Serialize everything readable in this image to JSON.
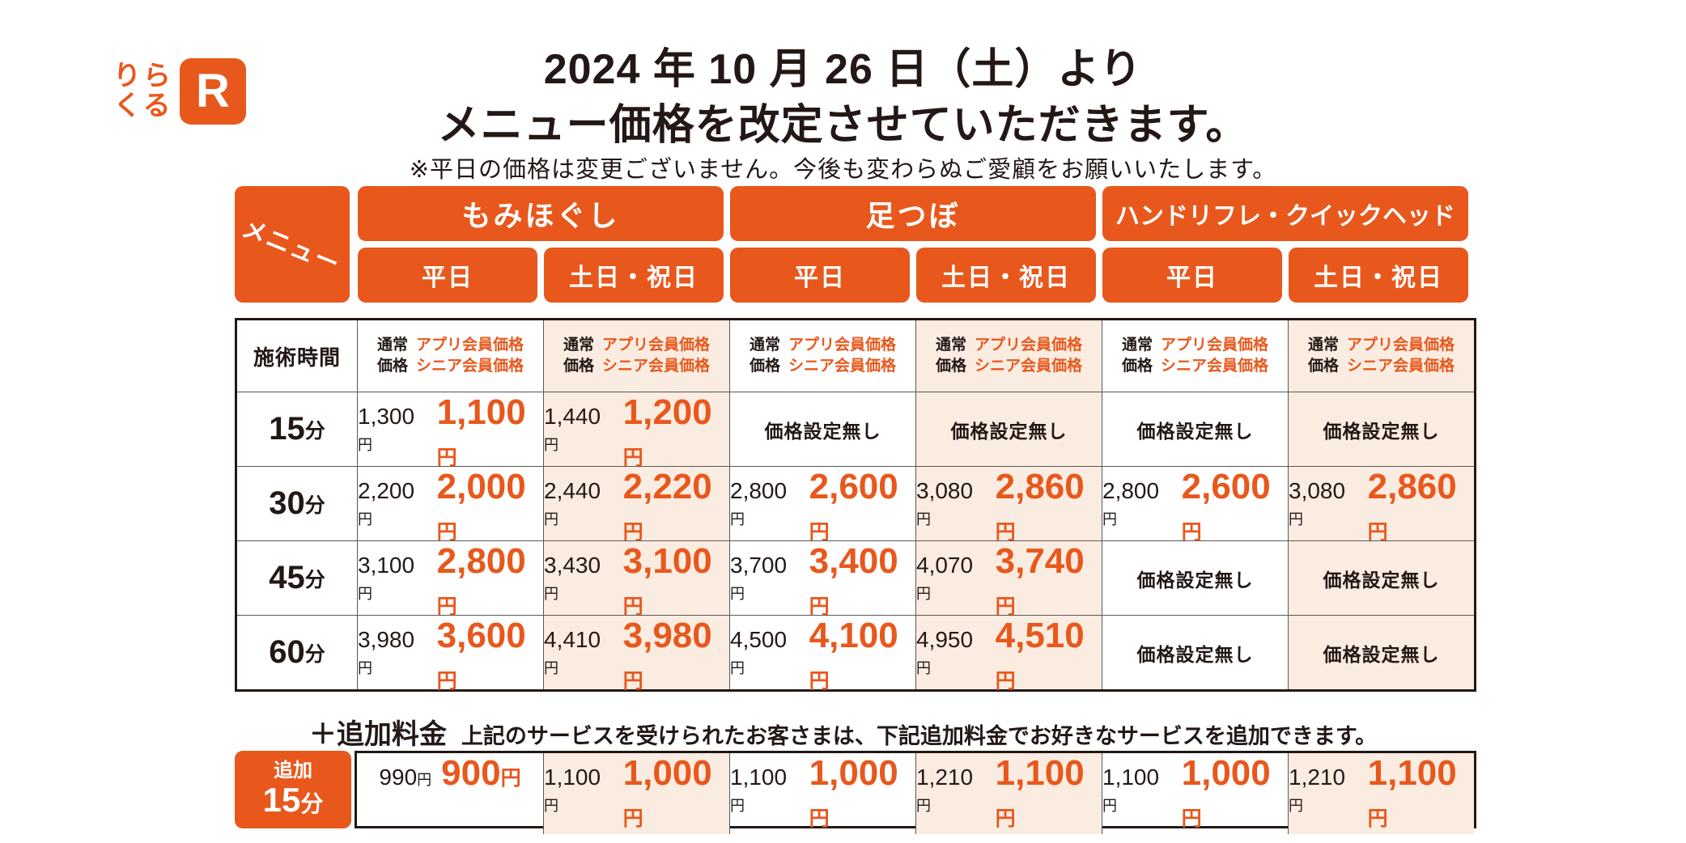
{
  "colors": {
    "orange": "#e8581c",
    "peach": "#fbece1",
    "ink": "#231815"
  },
  "logo": {
    "text": "りら\nくる",
    "r_letter": "R"
  },
  "page": {
    "title_line1": "2024 年 10 月 26 日（土）より",
    "title_line2": "メニュー価格を改定させていただきます。",
    "note": "※平日の価格は変更ございません。今後も変わらぬご愛顧をお願いいたします。"
  },
  "table": {
    "menu_label": "メニュー",
    "time_header": "施術時間",
    "categories": [
      {
        "label": "もみほぐし"
      },
      {
        "label": "足つぼ"
      },
      {
        "label": "ハンドリフレ・クイックヘッド"
      }
    ],
    "day_headers": [
      "平日",
      "土日・祝日",
      "平日",
      "土日・祝日",
      "平日",
      "土日・祝日"
    ],
    "price_header_normal": "通常\n価格",
    "price_header_member": "アプリ会員価格\nシニア会員価格",
    "no_price_label": "価格設定無し",
    "yen": "円",
    "rows": [
      {
        "time": "15",
        "time_unit": "分",
        "cells": [
          {
            "normal": "1,300",
            "member": "1,100"
          },
          {
            "normal": "1,440",
            "member": "1,200"
          },
          {
            "none": true
          },
          {
            "none": true
          },
          {
            "none": true
          },
          {
            "none": true
          }
        ]
      },
      {
        "time": "30",
        "time_unit": "分",
        "cells": [
          {
            "normal": "2,200",
            "member": "2,000"
          },
          {
            "normal": "2,440",
            "member": "2,220"
          },
          {
            "normal": "2,800",
            "member": "2,600"
          },
          {
            "normal": "3,080",
            "member": "2,860"
          },
          {
            "normal": "2,800",
            "member": "2,600"
          },
          {
            "normal": "3,080",
            "member": "2,860"
          }
        ]
      },
      {
        "time": "45",
        "time_unit": "分",
        "cells": [
          {
            "normal": "3,100",
            "member": "2,800"
          },
          {
            "normal": "3,430",
            "member": "3,100"
          },
          {
            "normal": "3,700",
            "member": "3,400"
          },
          {
            "normal": "4,070",
            "member": "3,740"
          },
          {
            "none": true
          },
          {
            "none": true
          }
        ]
      },
      {
        "time": "60",
        "time_unit": "分",
        "cells": [
          {
            "normal": "3,980",
            "member": "3,600"
          },
          {
            "normal": "4,410",
            "member": "3,980"
          },
          {
            "normal": "4,500",
            "member": "4,100"
          },
          {
            "normal": "4,950",
            "member": "4,510"
          },
          {
            "none": true
          },
          {
            "none": true
          }
        ]
      }
    ]
  },
  "addon": {
    "title": "＋追加料金",
    "description": "上記のサービスを受けられたお客さまは、下記追加料金でお好きなサービスを追加できます。",
    "label_small": "追加",
    "label_time": "15",
    "label_unit": "分",
    "cells": [
      {
        "normal": "990",
        "member": "900"
      },
      {
        "normal": "1,100",
        "member": "1,000"
      },
      {
        "normal": "1,100",
        "member": "1,000"
      },
      {
        "normal": "1,210",
        "member": "1,100"
      },
      {
        "normal": "1,100",
        "member": "1,000"
      },
      {
        "normal": "1,210",
        "member": "1,100"
      }
    ]
  }
}
